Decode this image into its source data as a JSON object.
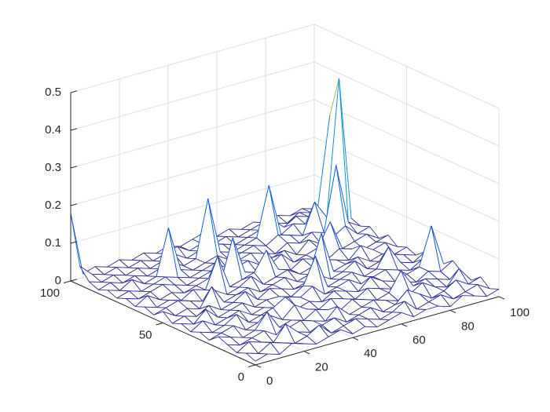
{
  "chart_data": {
    "type": "mesh",
    "colormap": "parula",
    "x": [
      0,
      5,
      10,
      15,
      20,
      25,
      30,
      35,
      40,
      45,
      50,
      55,
      60,
      65,
      70,
      75,
      80,
      85,
      90,
      95,
      100
    ],
    "y": [
      0,
      5,
      10,
      15,
      20,
      25,
      30,
      35,
      40,
      45,
      50,
      55,
      60,
      65,
      70,
      75,
      80,
      85,
      90,
      95,
      100
    ],
    "z": [
      [
        0.01,
        0.02,
        0.01,
        0.03,
        0.02,
        0.01,
        0.02,
        0.03,
        0.01,
        0.02,
        0.01,
        0.02,
        0.03,
        0.01,
        0.02,
        0.02,
        0.01,
        0.03,
        0.02,
        0.01,
        0.02
      ],
      [
        0.02,
        0.01,
        0.03,
        0.02,
        0.01,
        0.02,
        0.04,
        0.01,
        0.02,
        0.03,
        0.02,
        0.01,
        0.02,
        0.04,
        0.01,
        0.02,
        0.03,
        0.01,
        0.02,
        0.03,
        0.01
      ],
      [
        0.01,
        0.03,
        0.02,
        0.01,
        0.05,
        0.02,
        0.01,
        0.02,
        0.03,
        0.01,
        0.02,
        0.03,
        0.01,
        0.02,
        0.05,
        0.03,
        0.01,
        0.02,
        0.04,
        0.02,
        0.03
      ],
      [
        0.02,
        0.01,
        0.02,
        0.03,
        0.01,
        0.02,
        0.03,
        0.02,
        0.01,
        0.04,
        0.01,
        0.02,
        0.03,
        0.02,
        0.01,
        0.02,
        0.04,
        0.02,
        0.01,
        0.05,
        0.01
      ],
      [
        0.03,
        0.02,
        0.01,
        0.02,
        0.06,
        0.01,
        0.02,
        0.01,
        0.03,
        0.02,
        0.01,
        0.03,
        0.02,
        0.01,
        0.02,
        0.07,
        0.02,
        0.03,
        0.02,
        0.01,
        0.02
      ],
      [
        0.01,
        0.02,
        0.03,
        0.01,
        0.02,
        0.03,
        0.01,
        0.04,
        0.02,
        0.01,
        0.03,
        0.02,
        0.01,
        0.03,
        0.02,
        0.01,
        0.02,
        0.01,
        0.03,
        0.02,
        0.04
      ],
      [
        0.02,
        0.01,
        0.02,
        0.04,
        0.01,
        0.02,
        0.03,
        0.05,
        0.01,
        0.02,
        0.01,
        0.03,
        0.02,
        0.01,
        0.04,
        0.02,
        0.01,
        0.02,
        0.03,
        0.13,
        0.02
      ],
      [
        0.01,
        0.03,
        0.01,
        0.02,
        0.03,
        0.01,
        0.02,
        0.01,
        0.03,
        0.02,
        0.04,
        0.01,
        0.02,
        0.03,
        0.01,
        0.02,
        0.03,
        0.02,
        0.01,
        0.03,
        0.01
      ],
      [
        0.02,
        0.01,
        0.04,
        0.01,
        0.02,
        0.03,
        0.01,
        0.02,
        0.02,
        0.01,
        0.03,
        0.1,
        0.01,
        0.02,
        0.03,
        0.01,
        0.02,
        0.07,
        0.02,
        0.01,
        0.03
      ],
      [
        0.01,
        0.02,
        0.01,
        0.03,
        0.01,
        0.02,
        0.04,
        0.01,
        0.03,
        0.02,
        0.01,
        0.02,
        0.03,
        0.01,
        0.02,
        0.04,
        0.01,
        0.02,
        0.03,
        0.02,
        0.01
      ],
      [
        0.03,
        0.01,
        0.02,
        0.01,
        0.06,
        0.01,
        0.02,
        0.03,
        0.01,
        0.02,
        0.03,
        0.01,
        0.02,
        0.12,
        0.01,
        0.02,
        0.03,
        0.01,
        0.02,
        0.01,
        0.02
      ],
      [
        0.01,
        0.02,
        0.03,
        0.02,
        0.01,
        0.03,
        0.01,
        0.02,
        0.04,
        0.01,
        0.02,
        0.03,
        0.01,
        0.02,
        0.03,
        0.02,
        0.01,
        0.04,
        0.02,
        0.03,
        0.01
      ],
      [
        0.02,
        0.01,
        0.02,
        0.01,
        0.03,
        0.02,
        0.1,
        0.01,
        0.02,
        0.03,
        0.08,
        0.02,
        0.01,
        0.03,
        0.02,
        0.01,
        0.03,
        0.02,
        0.01,
        0.02,
        0.03
      ],
      [
        0.01,
        0.03,
        0.01,
        0.02,
        0.01,
        0.02,
        0.03,
        0.01,
        0.12,
        0.02,
        0.01,
        0.02,
        0.04,
        0.01,
        0.02,
        0.03,
        0.09,
        0.01,
        0.02,
        0.03,
        0.01
      ],
      [
        0.02,
        0.01,
        0.02,
        0.03,
        0.02,
        0.01,
        0.02,
        0.03,
        0.01,
        0.02,
        0.03,
        0.01,
        0.02,
        0.03,
        0.01,
        0.04,
        0.02,
        0.03,
        0.05,
        0.02,
        0.03
      ],
      [
        0.01,
        0.02,
        0.01,
        0.02,
        0.03,
        0.02,
        0.01,
        0.02,
        0.03,
        0.01,
        0.02,
        0.03,
        0.02,
        0.01,
        0.03,
        0.02,
        0.04,
        0.03,
        0.2,
        0.04,
        0.02
      ],
      [
        0.02,
        0.01,
        0.03,
        0.01,
        0.02,
        0.14,
        0.02,
        0.01,
        0.02,
        0.03,
        0.01,
        0.02,
        0.03,
        0.02,
        0.04,
        0.03,
        0.02,
        0.1,
        0.05,
        0.41,
        0.03
      ],
      [
        0.01,
        0.02,
        0.01,
        0.02,
        0.01,
        0.02,
        0.03,
        0.01,
        0.02,
        0.17,
        0.02,
        0.01,
        0.02,
        0.03,
        0.16,
        0.02,
        0.04,
        0.03,
        0.06,
        0.3,
        0.02
      ],
      [
        0.02,
        0.01,
        0.02,
        0.01,
        0.02,
        0.01,
        0.02,
        0.03,
        0.01,
        0.02,
        0.03,
        0.02,
        0.01,
        0.02,
        0.03,
        0.05,
        0.02,
        0.04,
        0.03,
        0.05,
        0.01
      ],
      [
        0.05,
        0.02,
        0.01,
        0.02,
        0.01,
        0.02,
        0.01,
        0.02,
        0.03,
        0.01,
        0.02,
        0.01,
        0.02,
        0.01,
        0.02,
        0.03,
        0.02,
        0.01,
        0.03,
        0.02,
        0.01
      ],
      [
        0.18,
        0.01,
        0.02,
        0.01,
        0.02,
        0.01,
        0.02,
        0.01,
        0.02,
        0.01,
        0.02,
        0.03,
        0.01,
        0.02,
        0.01,
        0.02,
        0.01,
        0.02,
        0.01,
        0.02,
        0.01
      ]
    ],
    "xlim": [
      0,
      100
    ],
    "ylim": [
      0,
      100
    ],
    "zlim": [
      0,
      0.5
    ],
    "xticks": [
      0,
      20,
      40,
      60,
      80,
      100
    ],
    "yticks": [
      0,
      50,
      100
    ],
    "zticks": [
      0,
      0.1,
      0.2,
      0.3,
      0.4,
      0.5
    ],
    "grid": true
  }
}
